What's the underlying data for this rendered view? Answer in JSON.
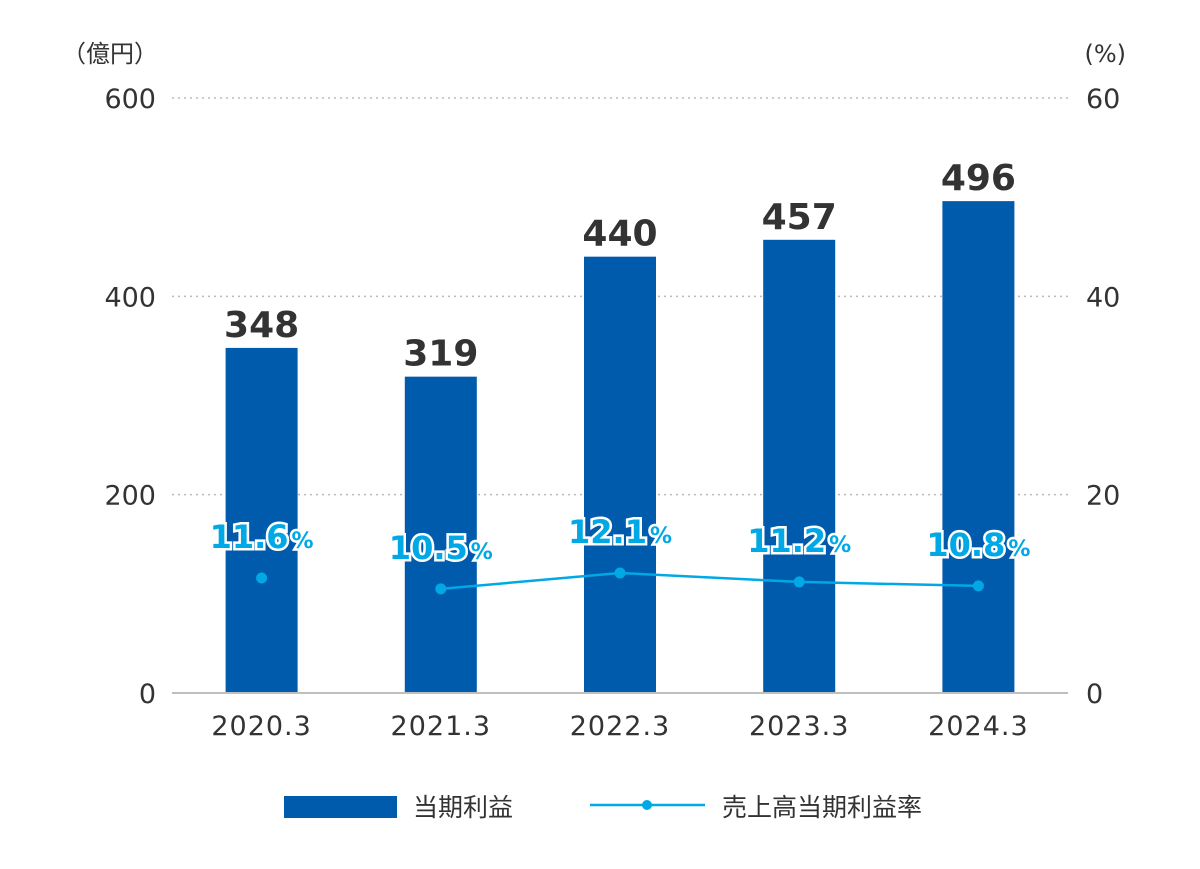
{
  "chart_data": {
    "type": "bar+line",
    "categories": [
      "2020.3",
      "2021.3",
      "2022.3",
      "2023.3",
      "2024.3"
    ],
    "series": [
      {
        "name": "当期利益",
        "type": "bar",
        "axis": "left",
        "values": [
          348,
          319,
          440,
          457,
          496
        ]
      },
      {
        "name": "売上高当期利益率",
        "type": "line",
        "axis": "right",
        "values": [
          11.6,
          10.5,
          12.1,
          11.2,
          10.8
        ]
      }
    ],
    "left_axis": {
      "unit": "（億円）",
      "ylim": [
        0,
        600
      ],
      "ticks": [
        "0",
        "200",
        "400",
        "600"
      ]
    },
    "right_axis": {
      "unit": "(%)",
      "ylim": [
        0,
        60
      ],
      "ticks": [
        "0",
        "20",
        "40",
        "60"
      ]
    },
    "percent_sign": "%",
    "grid": "dotted",
    "legend": {
      "position": "bottom",
      "items": [
        "当期利益",
        "売上高当期利益率"
      ]
    },
    "colors": {
      "bar": "#005bac",
      "line": "#00a8e6",
      "grid": "#bbbbbb",
      "axis": "#bfbfbf",
      "text": "#333333"
    }
  }
}
